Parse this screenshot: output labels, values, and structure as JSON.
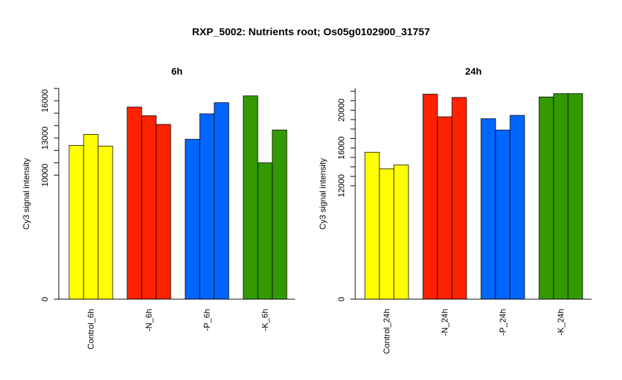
{
  "title": "RXP_5002: Nutrients root; Os05g0102900_31757",
  "colors": {
    "control": "#ffff00",
    "n": "#ff2200",
    "p": "#0066ff",
    "k": "#339900"
  },
  "chart_data": [
    {
      "type": "bar",
      "title": "6h",
      "ylabel": "Cy3 signal intensity",
      "categories": [
        "Control_6h",
        "-N_6h",
        "-P_6h",
        "-K_6h"
      ],
      "group_colors": [
        "#ffff00",
        "#ff2200",
        "#0066ff",
        "#339900"
      ],
      "groups": [
        {
          "category": "Control_6h",
          "values": [
            12400,
            13300,
            12350
          ]
        },
        {
          "category": "-N_6h",
          "values": [
            15500,
            14800,
            14100
          ]
        },
        {
          "category": "-P_6h",
          "values": [
            12900,
            14950,
            15850
          ]
        },
        {
          "category": "-K_6h",
          "values": [
            16400,
            11000,
            13650
          ]
        }
      ],
      "ylim": [
        0,
        17000
      ],
      "yticks": [
        0,
        10000,
        13000,
        16000
      ],
      "minor_yticks": [
        11000,
        12000,
        14000,
        15000,
        17000
      ],
      "grid": false
    },
    {
      "type": "bar",
      "title": "24h",
      "ylabel": "Cy3 signal intensity",
      "categories": [
        "Control_24h",
        "-N_24h",
        "-P_24h",
        "-K_24h"
      ],
      "group_colors": [
        "#ffff00",
        "#ff2200",
        "#0066ff",
        "#339900"
      ],
      "groups": [
        {
          "category": "Control_24h",
          "values": [
            15550,
            13800,
            14200
          ]
        },
        {
          "category": "-N_24h",
          "values": [
            21700,
            19300,
            21350
          ]
        },
        {
          "category": "-P_24h",
          "values": [
            19100,
            17900,
            19450
          ]
        },
        {
          "category": "-K_24h",
          "values": [
            21400,
            21750,
            21750
          ]
        }
      ],
      "ylim": [
        0,
        22300
      ],
      "yticks": [
        0,
        12000,
        16000,
        20000
      ],
      "minor_yticks": [
        13000,
        14000,
        15000,
        17000,
        18000,
        19000,
        21000,
        22000
      ],
      "grid": false
    }
  ]
}
